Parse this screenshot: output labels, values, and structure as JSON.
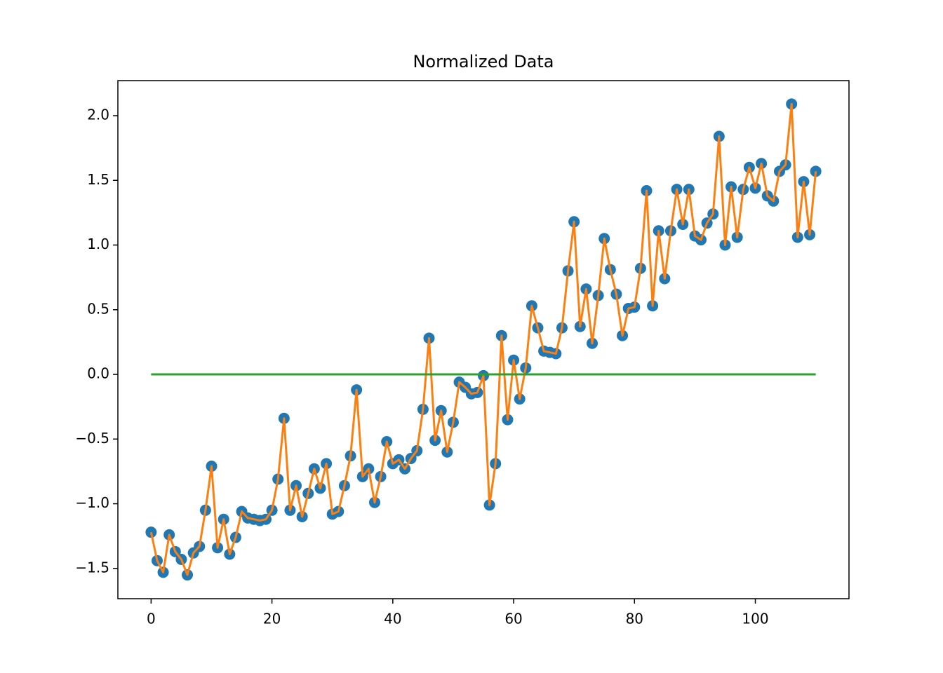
{
  "chart_data": {
    "type": "line",
    "title": "Normalized Data",
    "x": [
      0,
      1,
      2,
      3,
      4,
      5,
      6,
      7,
      8,
      9,
      10,
      11,
      12,
      13,
      14,
      15,
      16,
      17,
      18,
      19,
      20,
      21,
      22,
      23,
      24,
      25,
      26,
      27,
      28,
      29,
      30,
      31,
      32,
      33,
      34,
      35,
      36,
      37,
      38,
      39,
      40,
      41,
      42,
      43,
      44,
      45,
      46,
      47,
      48,
      49,
      50,
      51,
      52,
      53,
      54,
      55,
      56,
      57,
      58,
      59,
      60,
      61,
      62,
      63,
      64,
      65,
      66,
      67,
      68,
      69,
      70,
      71,
      72,
      73,
      74,
      75,
      76,
      77,
      78,
      79,
      80,
      81,
      82,
      83,
      84,
      85,
      86,
      87,
      88,
      89,
      90,
      91,
      92,
      93,
      94,
      95,
      96,
      97,
      98,
      99,
      100,
      101,
      102,
      103,
      104,
      105,
      106,
      107,
      108,
      109,
      110
    ],
    "series": [
      {
        "type": "scatter",
        "color": "#1f77b4",
        "values": [
          -1.22,
          -1.44,
          -1.53,
          -1.24,
          -1.37,
          -1.43,
          -1.55,
          -1.38,
          -1.33,
          -1.05,
          -0.71,
          -1.34,
          -1.12,
          -1.39,
          -1.26,
          -1.06,
          -1.11,
          -1.12,
          -1.13,
          -1.12,
          -1.05,
          -0.81,
          -0.34,
          -1.05,
          -0.86,
          -1.1,
          -0.92,
          -0.73,
          -0.88,
          -0.69,
          -1.08,
          -1.06,
          -0.86,
          -0.63,
          -0.12,
          -0.79,
          -0.73,
          -0.99,
          -0.79,
          -0.52,
          -0.69,
          -0.66,
          -0.73,
          -0.65,
          -0.59,
          -0.27,
          0.28,
          -0.51,
          -0.28,
          -0.6,
          -0.37,
          -0.06,
          -0.1,
          -0.15,
          -0.14,
          -0.01,
          -1.01,
          -0.69,
          0.3,
          -0.35,
          0.11,
          -0.19,
          0.05,
          0.53,
          0.36,
          0.18,
          0.17,
          0.16,
          0.36,
          0.8,
          1.18,
          0.37,
          0.66,
          0.24,
          0.61,
          1.05,
          0.81,
          0.62,
          0.3,
          0.51,
          0.52,
          0.82,
          1.42,
          0.53,
          1.11,
          0.74,
          1.11,
          1.43,
          1.16,
          1.43,
          1.07,
          1.04,
          1.17,
          1.24,
          1.84,
          1.0,
          1.45,
          1.06,
          1.43,
          1.6,
          1.44,
          1.63,
          1.38,
          1.34,
          1.57,
          1.62,
          2.09,
          1.06,
          1.49,
          1.08,
          1.57
        ]
      },
      {
        "type": "line",
        "color": "#ff7f0e",
        "values": [
          -1.22,
          -1.44,
          -1.53,
          -1.24,
          -1.37,
          -1.43,
          -1.55,
          -1.38,
          -1.33,
          -1.05,
          -0.71,
          -1.34,
          -1.12,
          -1.39,
          -1.26,
          -1.06,
          -1.11,
          -1.12,
          -1.13,
          -1.12,
          -1.05,
          -0.81,
          -0.34,
          -1.05,
          -0.86,
          -1.1,
          -0.92,
          -0.73,
          -0.88,
          -0.69,
          -1.08,
          -1.06,
          -0.86,
          -0.63,
          -0.12,
          -0.79,
          -0.73,
          -0.99,
          -0.79,
          -0.52,
          -0.69,
          -0.66,
          -0.73,
          -0.65,
          -0.59,
          -0.27,
          0.28,
          -0.51,
          -0.28,
          -0.6,
          -0.37,
          -0.06,
          -0.1,
          -0.15,
          -0.14,
          -0.01,
          -1.01,
          -0.69,
          0.3,
          -0.35,
          0.11,
          -0.19,
          0.05,
          0.53,
          0.36,
          0.18,
          0.17,
          0.16,
          0.36,
          0.8,
          1.18,
          0.37,
          0.66,
          0.24,
          0.61,
          1.05,
          0.81,
          0.62,
          0.3,
          0.51,
          0.52,
          0.82,
          1.42,
          0.53,
          1.11,
          0.74,
          1.11,
          1.43,
          1.16,
          1.43,
          1.07,
          1.04,
          1.17,
          1.24,
          1.84,
          1.0,
          1.45,
          1.06,
          1.43,
          1.6,
          1.44,
          1.63,
          1.38,
          1.34,
          1.57,
          1.62,
          2.09,
          1.06,
          1.49,
          1.08,
          1.57
        ]
      },
      {
        "type": "line",
        "color": "#2ca02c",
        "x": [
          0,
          110
        ],
        "values": [
          0,
          0
        ]
      }
    ],
    "xlim": [
      -5.5,
      115.5
    ],
    "ylim": [
      -1.734,
      2.271
    ],
    "xticks": [
      0,
      20,
      40,
      60,
      80,
      100
    ],
    "yticks": [
      {
        "value": -1.5,
        "label": "−1.5"
      },
      {
        "value": -1.0,
        "label": "−1.0"
      },
      {
        "value": -0.5,
        "label": "−0.5"
      },
      {
        "value": 0,
        "label": "0.0"
      },
      {
        "value": 0.5,
        "label": "0.5"
      },
      {
        "value": 1.0,
        "label": "1.0"
      },
      {
        "value": 1.5,
        "label": "1.5"
      },
      {
        "value": 2.0,
        "label": "2.0"
      }
    ]
  }
}
